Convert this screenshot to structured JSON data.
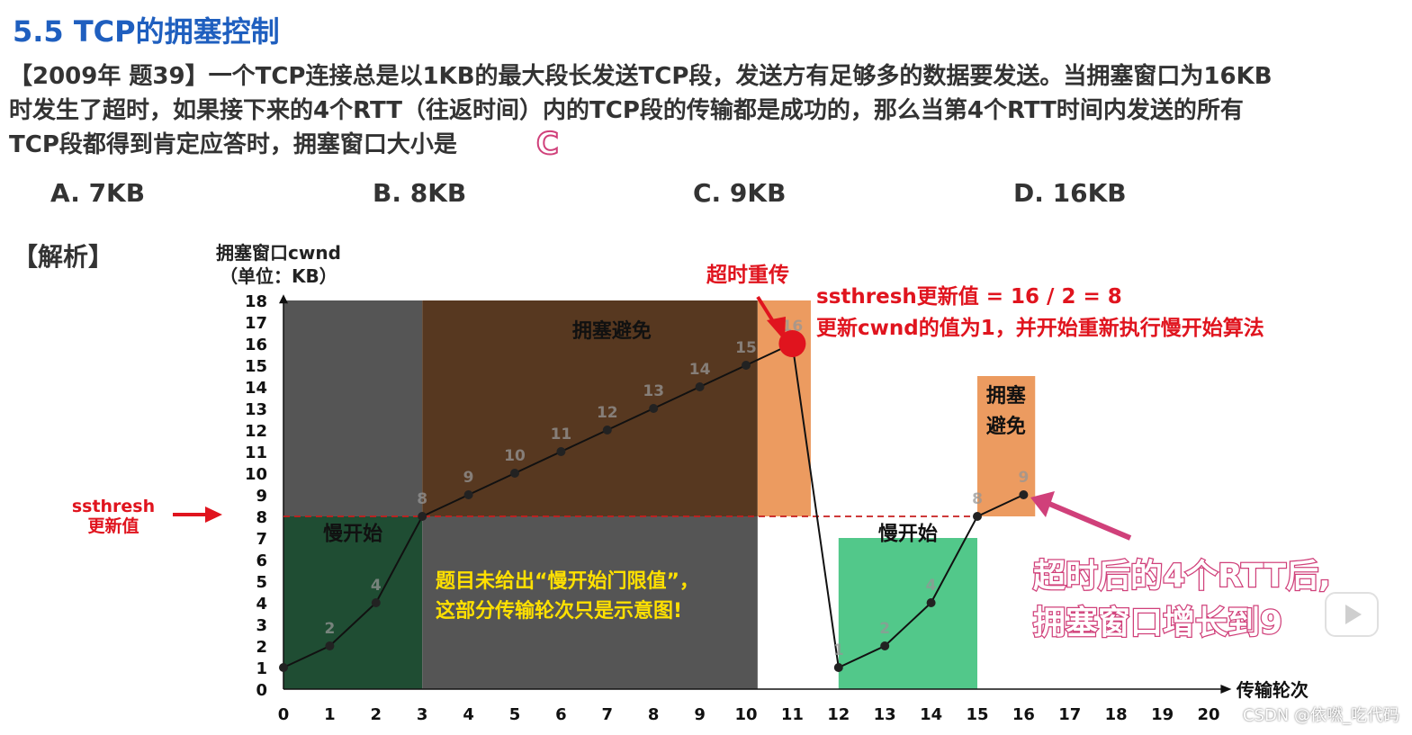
{
  "title": "5.5 TCP的拥塞控制",
  "question": {
    "line1": "【2009年 题39】一个TCP连接总是以1KB的最大段长发送TCP段，发送方有足够多的数据要发送。当拥塞窗口为16KB",
    "line2": "时发生了超时，如果接下来的4个RTT（往返时间）内的TCP段的传输都是成功的，那么当第4个RTT时间内发送的所有",
    "line3": "TCP段都得到肯定应答时，拥塞窗口大小是",
    "answer_mark": "C"
  },
  "options": [
    "A. 7KB",
    "B. 8KB",
    "C. 9KB",
    "D. 16KB"
  ],
  "analysis_label": "【解析】",
  "chart_data": {
    "type": "line",
    "ylabel_line1": "拥塞窗口cwnd",
    "ylabel_line2": "（单位：KB）",
    "xlabel": "传输轮次",
    "x_ticks": [
      0,
      1,
      2,
      3,
      4,
      5,
      6,
      7,
      8,
      9,
      10,
      11,
      12,
      13,
      14,
      15,
      16,
      17,
      18,
      19,
      20
    ],
    "y_ticks": [
      0,
      1,
      2,
      3,
      4,
      5,
      6,
      7,
      8,
      9,
      10,
      11,
      12,
      13,
      14,
      15,
      16,
      17,
      18
    ],
    "xlim": [
      0,
      20
    ],
    "ylim": [
      0,
      18
    ],
    "series": [
      {
        "x": [
          0,
          1,
          2,
          3,
          4,
          5,
          6,
          7,
          8,
          9,
          10,
          11,
          12,
          13,
          14,
          15,
          16
        ],
        "y": [
          1,
          2,
          4,
          8,
          9,
          10,
          11,
          12,
          13,
          14,
          15,
          16,
          1,
          2,
          4,
          8,
          9
        ]
      }
    ],
    "point_labels": [
      "2",
      "4",
      "8",
      "9",
      "10",
      "11",
      "12",
      "13",
      "14",
      "15",
      "16",
      "1",
      "2",
      "4",
      "8",
      "9"
    ],
    "timeout_point": {
      "x": 11,
      "y": 16
    },
    "ssthresh": 8,
    "regions": [
      {
        "label": "慢开始",
        "x0": 0,
        "x1": 3,
        "y0": 0,
        "y1": 8,
        "color": "#1f4d33"
      },
      {
        "label": "",
        "x0": 0,
        "x1": 3,
        "y0": 8,
        "y1": 18,
        "color": "#555555"
      },
      {
        "label": "拥塞避免",
        "x0": 3,
        "x1": 10.25,
        "y0": 8,
        "y1": 18,
        "color": "#573820"
      },
      {
        "label": "",
        "x0": 3,
        "x1": 10.25,
        "y0": 0,
        "y1": 8,
        "color": "#555555"
      },
      {
        "label": "",
        "x0": 10.25,
        "x1": 11.4,
        "y0": 8,
        "y1": 18,
        "color": "#ec9b60"
      },
      {
        "label": "慢开始",
        "x0": 12,
        "x1": 15,
        "y0": 0,
        "y1": 7,
        "color": "#52c88a"
      },
      {
        "label": "拥塞\n避免",
        "x0": 15,
        "x1": 16.25,
        "y0": 8,
        "y1": 14.5,
        "color": "#ec9b60"
      }
    ],
    "annotations": {
      "timeout_label": "超时重传",
      "ssthresh_update": "ssthresh更新值 = 16 / 2 = 8",
      "cwnd_reset": "更新cwnd的值为1，并开始重新执行慢开始算法",
      "ssthresh_side_line1": "ssthresh",
      "ssthresh_side_line2": "更新值",
      "note_line1": "题目未给出“慢开始门限值”，",
      "note_line2": "这部分传输轮次只是示意图!",
      "result_line1": "超时后的4个RTT后,",
      "result_line2": "拥塞窗口增长到9"
    },
    "colors": {
      "red": "#e0141e",
      "pink": "#d0407a",
      "yellow": "#ffe000",
      "line": "#111111"
    }
  },
  "watermark": "CSDN @依嘫_吃代码"
}
